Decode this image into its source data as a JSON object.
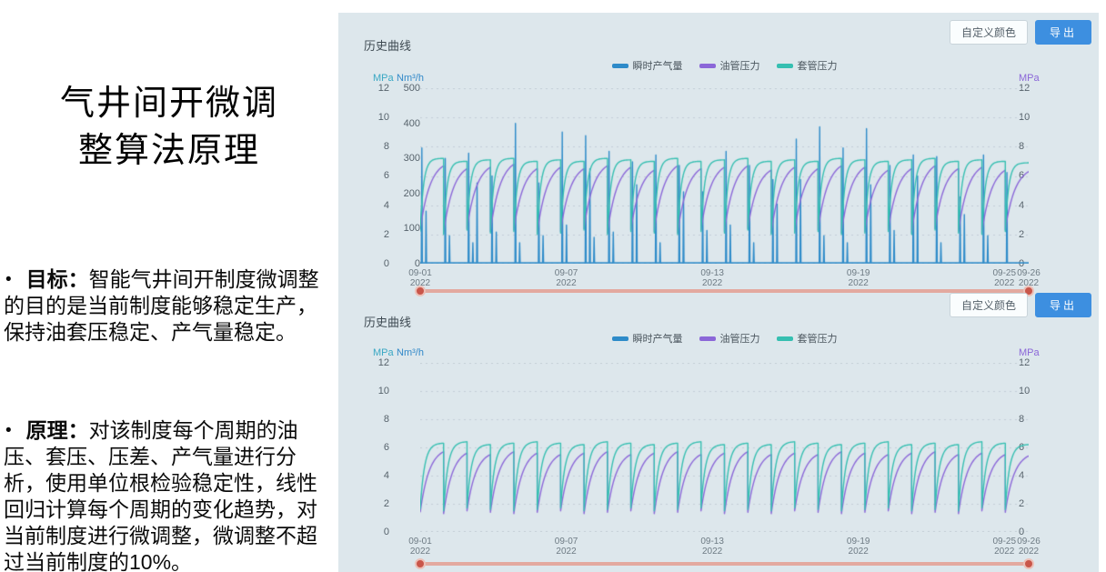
{
  "slide": {
    "title_line1": "气井间开微调",
    "title_line2": "整算法原理",
    "bullet_char": "•",
    "bullets": [
      {
        "label": "目标：",
        "text": "智能气井间开制度微调整的目的是当前制度能够稳定生产，保持油套压稳定、产气量稳定。"
      },
      {
        "label": "原理：",
        "text": "对该制度每个周期的油压、套压、压差、产气量进行分析，使用单位根检验稳定性，线性回归计算每个周期的变化趋势，对当前制度进行微调整，微调整不超过当前制度的10%。"
      }
    ]
  },
  "theme": {
    "panel_bg": "#dde7ec",
    "primary_button_bg": "#3d8fe0",
    "slider_track": "#e3a99f",
    "slider_handle": "#c9564a",
    "grid_line": "#c3ced6",
    "series_gas": "#2e8bc9",
    "series_tubing": "#8b67d8",
    "series_casing": "#36bfb1"
  },
  "charts": [
    {
      "header": "历史曲线",
      "buttons": {
        "custom_color": "自定义颜色",
        "export": "导出"
      },
      "legend": [
        {
          "label": "瞬时产气量",
          "color": "#2e8bc9"
        },
        {
          "label": "油管压力",
          "color": "#8b67d8"
        },
        {
          "label": "套管压力",
          "color": "#36bfb1"
        }
      ],
      "axis_units": {
        "left_pressure": "MPa",
        "left_flow": "Nm³/h",
        "right_pressure": "MPa"
      },
      "mpa_ticks": [
        "12",
        "10",
        "8",
        "6",
        "4",
        "2",
        "0"
      ],
      "flow_ticks": [
        "500",
        "400",
        "300",
        "200",
        "100",
        "0"
      ],
      "x_ticks": [
        {
          "date": "09-01",
          "year": "2022",
          "pos": 0
        },
        {
          "date": "09-07",
          "year": "2022",
          "pos": 0.24
        },
        {
          "date": "09-13",
          "year": "2022",
          "pos": 0.48
        },
        {
          "date": "09-19",
          "year": "2022",
          "pos": 0.72
        },
        {
          "date": "09-25",
          "year": "2022",
          "pos": 0.96
        },
        {
          "date": "09-26",
          "year": "2022",
          "pos": 1.0
        }
      ]
    },
    {
      "header": "历史曲线",
      "buttons": {
        "custom_color": "自定义颜色",
        "export": "导出"
      },
      "legend": [
        {
          "label": "瞬时产气量",
          "color": "#2e8bc9"
        },
        {
          "label": "油管压力",
          "color": "#8b67d8"
        },
        {
          "label": "套管压力",
          "color": "#36bfb1"
        }
      ],
      "axis_units": {
        "left_pressure": "MPa",
        "left_flow": "Nm³/h",
        "right_pressure": "MPa"
      },
      "mpa_ticks": [
        "12",
        "10",
        "8",
        "6",
        "4",
        "2",
        "0"
      ],
      "flow_ticks": [],
      "x_ticks": [
        {
          "date": "09-01",
          "year": "2022",
          "pos": 0
        },
        {
          "date": "09-07",
          "year": "2022",
          "pos": 0.24
        },
        {
          "date": "09-13",
          "year": "2022",
          "pos": 0.48
        },
        {
          "date": "09-19",
          "year": "2022",
          "pos": 0.72
        },
        {
          "date": "09-25",
          "year": "2022",
          "pos": 0.96
        },
        {
          "date": "09-26",
          "year": "2022",
          "pos": 1.0
        }
      ]
    }
  ],
  "chart_data": [
    {
      "type": "line",
      "title": "历史曲线",
      "grid": true,
      "legend_position": "top",
      "cycles": 26,
      "x_tick_dates": [
        "2022-09-01",
        "2022-09-07",
        "2022-09-13",
        "2022-09-19",
        "2022-09-25",
        "2022-09-26"
      ],
      "axes": {
        "left_pressure": {
          "label": "MPa",
          "min": 0,
          "max": 12
        },
        "left_flow": {
          "label": "Nm³/h",
          "min": 0,
          "max": 500
        },
        "right_pressure": {
          "label": "MPa",
          "min": 0,
          "max": 12
        }
      },
      "series": [
        {
          "name": "瞬时产气量",
          "color": "#2e8bc9",
          "axis": "flow",
          "pattern": "spikes",
          "cycle_spikes": [
            [
              330,
              150
            ],
            [
              300,
              80
            ],
            [
              315,
              60,
              230
            ],
            [
              250,
              90
            ],
            [
              400,
              60
            ],
            [
              230,
              80
            ],
            [
              375,
              110
            ],
            [
              365,
              270,
              75
            ],
            [
              320,
              90
            ],
            [
              290,
              225
            ],
            [
              310,
              60
            ],
            [
              280,
              205
            ],
            [
              205,
              95
            ],
            [
              320,
              110
            ],
            [
              280,
              60
            ],
            [
              240,
              170
            ],
            [
              355,
              240
            ],
            [
              390,
              80
            ],
            [
              330,
              60
            ],
            [
              385,
              225
            ],
            [
              280,
              95
            ],
            [
              310,
              250
            ],
            [
              305,
              60
            ],
            [
              190,
              140
            ],
            [
              310,
              80
            ],
            [
              260
            ]
          ]
        },
        {
          "name": "油管压力",
          "color": "#8b67d8",
          "axis": "pressure",
          "pattern": "rise",
          "rise_rate": 2.4,
          "cycle_max": [
            6.7,
            6.5,
            6.6,
            6.8,
            6.5,
            6.6,
            6.5,
            6.7,
            6.6,
            6.4,
            6.7,
            6.5,
            6.6,
            6.7,
            6.4,
            6.6,
            6.5,
            6.7,
            6.6,
            6.4,
            6.5,
            6.7,
            6.5,
            6.6,
            6.4,
            6.3
          ],
          "cycle_min": [
            2.3,
            2.1,
            2.4,
            2.2,
            2.3,
            2.1,
            2.2,
            2.4,
            2.1,
            2.3,
            2.2,
            2.1,
            2.3,
            2.2,
            2.4,
            2.1,
            2.2,
            2.3,
            2.1,
            2.2,
            2.3,
            2.1,
            2.4,
            2.2,
            2.1,
            2.3
          ]
        },
        {
          "name": "套管压力",
          "color": "#36bfb1",
          "axis": "pressure",
          "pattern": "rise",
          "rise_rate": 7,
          "cycle_max": [
            7.2,
            7.0,
            7.1,
            7.2,
            7.0,
            7.1,
            7.0,
            7.2,
            7.1,
            7.0,
            7.2,
            7.0,
            7.1,
            7.2,
            7.0,
            7.1,
            7.0,
            7.2,
            7.1,
            7.0,
            7.1,
            7.2,
            7.0,
            7.1,
            7.0,
            6.9
          ],
          "cycle_min": [
            2.2,
            2.0,
            2.3,
            2.1,
            2.2,
            2.0,
            2.1,
            2.3,
            2.0,
            2.2,
            2.1,
            2.0,
            2.2,
            2.1,
            2.3,
            2.0,
            2.1,
            2.2,
            2.0,
            2.1,
            2.2,
            2.0,
            2.3,
            2.1,
            2.0,
            2.2
          ]
        }
      ]
    },
    {
      "type": "line",
      "title": "历史曲线",
      "grid": true,
      "legend_position": "top",
      "cycles": 26,
      "x_tick_dates": [
        "2022-09-01",
        "2022-09-07",
        "2022-09-13",
        "2022-09-19",
        "2022-09-25",
        "2022-09-26"
      ],
      "axes": {
        "left_pressure": {
          "label": "MPa",
          "min": 0,
          "max": 12
        },
        "left_flow": {
          "label": "Nm³/h",
          "min": 0,
          "max": 500
        },
        "right_pressure": {
          "label": "MPa",
          "min": 0,
          "max": 12
        }
      },
      "series": [
        {
          "name": "瞬时产气量",
          "color": "#2e8bc9",
          "axis": "flow",
          "pattern": "spikes",
          "cycle_spikes": []
        },
        {
          "name": "油管压力",
          "color": "#8b67d8",
          "axis": "pressure",
          "pattern": "rise",
          "rise_rate": 2.6,
          "cycle_max": [
            5.7,
            5.6,
            5.5,
            5.7,
            5.6,
            5.5,
            5.6,
            5.7,
            5.5,
            5.6,
            5.7,
            5.5,
            5.6,
            5.7,
            5.5,
            5.6,
            5.5,
            5.7,
            5.6,
            5.5,
            5.6,
            5.7,
            5.5,
            5.6,
            5.5,
            5.4
          ],
          "cycle_min": [
            1.4,
            1.3,
            1.5,
            1.4,
            1.3,
            1.4,
            1.5,
            1.3,
            1.4,
            1.5,
            1.3,
            1.4,
            1.5,
            1.3,
            1.4,
            1.3,
            1.5,
            1.4,
            1.3,
            1.4,
            1.5,
            1.3,
            1.4,
            1.3,
            1.5,
            1.4
          ]
        },
        {
          "name": "套管压力",
          "color": "#36bfb1",
          "axis": "pressure",
          "pattern": "rise",
          "rise_rate": 5.5,
          "cycle_max": [
            6.3,
            6.4,
            6.2,
            6.3,
            6.4,
            6.3,
            6.2,
            6.4,
            6.3,
            6.2,
            6.3,
            6.4,
            6.2,
            6.3,
            6.2,
            6.4,
            6.3,
            6.2,
            6.3,
            6.4,
            6.2,
            6.3,
            6.2,
            6.4,
            6.3,
            6.2
          ],
          "cycle_min": [
            1.6,
            1.5,
            1.7,
            1.6,
            1.5,
            1.6,
            1.7,
            1.5,
            1.6,
            1.7,
            1.5,
            1.6,
            1.7,
            1.5,
            1.6,
            1.5,
            1.7,
            1.6,
            1.5,
            1.6,
            1.7,
            1.5,
            1.6,
            1.5,
            1.7,
            1.6
          ]
        }
      ]
    }
  ]
}
